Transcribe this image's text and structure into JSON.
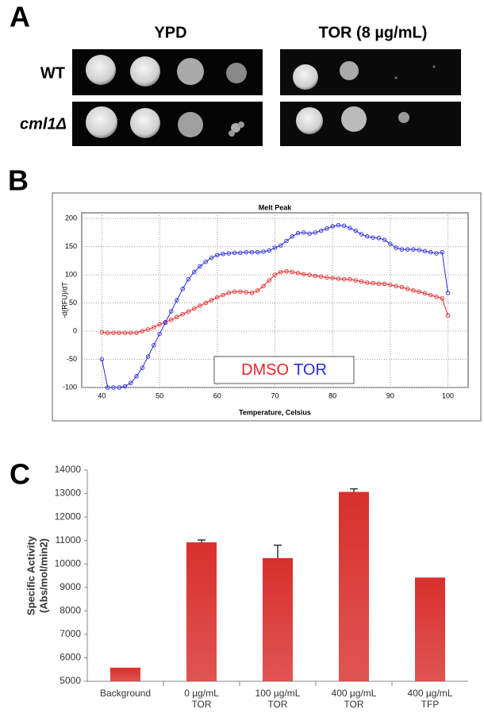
{
  "panel_labels": [
    "A",
    "B",
    "C"
  ],
  "spot_assay": {
    "columns": [
      "YPD",
      "TOR (8 µg/mL)"
    ],
    "rows": [
      "WT",
      "cml1Δ"
    ]
  },
  "chart_data": [
    {
      "type": "line",
      "title": "Melt Peak",
      "x_label": "Temperature, Celsius",
      "y_label": "-d(RFU)/dT",
      "x": [
        40,
        41,
        42,
        43,
        44,
        45,
        46,
        47,
        48,
        49,
        50,
        51,
        52,
        53,
        54,
        55,
        56,
        57,
        58,
        59,
        60,
        61,
        62,
        63,
        64,
        65,
        66,
        67,
        68,
        69,
        70,
        71,
        72,
        73,
        74,
        75,
        76,
        77,
        78,
        79,
        80,
        81,
        82,
        83,
        84,
        85,
        86,
        87,
        88,
        89,
        90,
        91,
        92,
        93,
        94,
        95,
        96,
        97,
        98,
        99,
        100
      ],
      "series": [
        {
          "name": "DMSO",
          "color": "#e8262a",
          "values": [
            -2,
            -3,
            -3,
            -3,
            -3,
            -3,
            -3,
            0,
            3,
            7,
            12,
            16,
            20,
            25,
            30,
            35,
            40,
            45,
            50,
            55,
            60,
            64,
            68,
            70,
            70,
            69,
            68,
            72,
            80,
            90,
            100,
            105,
            106,
            105,
            103,
            101,
            100,
            98,
            97,
            95,
            94,
            93,
            92,
            92,
            90,
            88,
            86,
            85,
            84,
            84,
            82,
            80,
            78,
            75,
            72,
            70,
            67,
            64,
            61,
            58,
            28
          ]
        },
        {
          "name": "TOR",
          "color": "#2a2ae0",
          "values": [
            -50,
            -100,
            -100,
            -100,
            -98,
            -92,
            -80,
            -65,
            -45,
            -25,
            -5,
            15,
            35,
            55,
            75,
            92,
            105,
            115,
            123,
            130,
            135,
            137,
            138,
            139,
            139,
            140,
            140,
            140,
            141,
            143,
            148,
            152,
            160,
            168,
            174,
            175,
            173,
            175,
            178,
            182,
            186,
            188,
            187,
            183,
            178,
            172,
            168,
            166,
            165,
            162,
            155,
            148,
            145,
            145,
            145,
            144,
            142,
            140,
            138,
            140,
            68
          ]
        }
      ],
      "xlim": [
        36.5,
        103.5
      ],
      "xticks": [
        40,
        50,
        60,
        70,
        80,
        90,
        100
      ],
      "ylim": [
        -100,
        210
      ],
      "yticks": [
        -100,
        -50,
        0,
        50,
        100,
        150,
        200
      ],
      "grid": true,
      "legend": "lower center"
    },
    {
      "type": "bar",
      "y_label": [
        "Specific Activity",
        "(Abs/mol/min2)"
      ],
      "categories": [
        "Background",
        "0 µg/mL TOR",
        "100 µg/mL TOR",
        "400 µg/mL TOR",
        "400 µg/mL TFP"
      ],
      "values": [
        5580,
        10920,
        10250,
        13070,
        9420
      ],
      "errors": [
        null,
        100,
        550,
        130,
        null
      ],
      "color": "#d8302c",
      "ylim": [
        5000,
        14000
      ],
      "yticks": [
        5000,
        6000,
        7000,
        8000,
        9000,
        10000,
        11000,
        12000,
        13000,
        14000
      ],
      "grid": false
    }
  ]
}
